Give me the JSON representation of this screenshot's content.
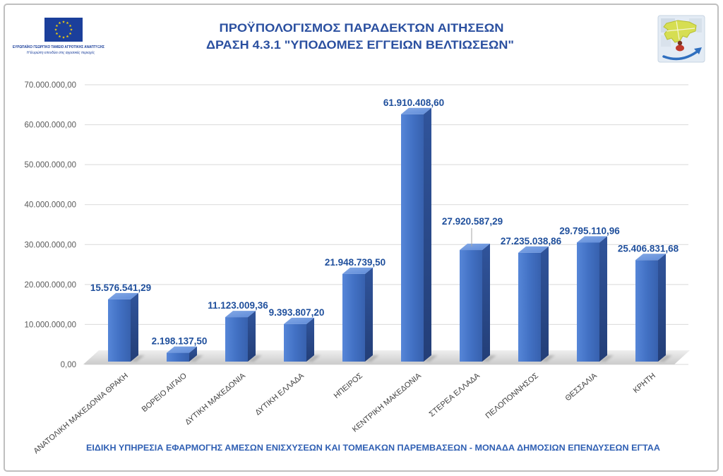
{
  "chart_data": {
    "type": "bar",
    "three_d": true,
    "title": "ΠΡΟΫΠΟΛΟΓΙΣΜΟΣ ΠΑΡΑΔΕΚΤΩΝ ΑΙΤΗΣΕΩΝ",
    "subtitle": "ΔΡΑΣΗ 4.3.1 \"ΥΠΟΔΟΜΕΣ ΕΓΓΕΙΩΝ ΒΕΛΤΙΩΣΕΩΝ\"",
    "categories": [
      "ΑΝΑΤΟΛΙΚΗ ΜΑΚΕΔΟΝΙΑ ΘΡΑΚΗ",
      "ΒΟΡΕΙΟ ΑΙΓΑΙΟ",
      "ΔΥΤΙΚΗ ΜΑΚΕΔΟΝΙΑ",
      "ΔΥΤΙΚΗ ΕΛΛΑΔΑ",
      "ΗΠΕΙΡΟΣ",
      "ΚΕΝΤΡΙΚΗ ΜΑΚΕΔΟΝΙΑ",
      "ΣΤΕΡΕΑ ΕΛΛΑΔΑ",
      "ΠΕΛΟΠΟΝΝΗΣΟΣ",
      "ΘΕΣΣΑΛΙΑ",
      "ΚΡΗΤΗ"
    ],
    "values": [
      15576541.29,
      2198137.5,
      11123009.36,
      9393807.2,
      21948739.5,
      61910408.6,
      27920587.29,
      27235038.86,
      29795110.96,
      25406831.68
    ],
    "data_labels": [
      "15.576.541,29",
      "2.198.137,50",
      "11.123.009,36",
      "9.393.807,20",
      "21.948.739,50",
      "61.910.408,60",
      "27.920.587,29",
      "27.235.038,86",
      "29.795.110,96",
      "25.406.831,68"
    ],
    "ylim": [
      0,
      70000000
    ],
    "y_ticks": [
      0,
      10000000,
      20000000,
      30000000,
      40000000,
      50000000,
      60000000,
      70000000
    ],
    "y_tick_labels": [
      "0,00",
      "10.000.000,00",
      "20.000.000,00",
      "30.000.000,00",
      "40.000.000,00",
      "50.000.000,00",
      "60.000.000,00",
      "70.000.000,00"
    ],
    "grid": true,
    "legend": "none"
  },
  "logo_left": {
    "icon": "eu-flag-icon",
    "line1": "ΕΥΡΩΠΑΪΚΟ ΓΕΩΡΓΙΚΟ ΤΑΜΕΙΟ ΑΓΡΟΤΙΚΗΣ ΑΝΑΠΤΥΞΗΣ",
    "line2": "Η Ευρώπη επενδύει στις αγροτικές περιοχές"
  },
  "logo_right": {
    "icon": "greece-puzzle-logo-icon"
  },
  "footer": "ΕΙΔΙΚΗ ΥΠΗΡΕΣΙΑ ΕΦΑΡΜΟΓΗΣ ΑΜΕΣΩΝ ΕΝΙΣΧΥΣΕΩΝ ΚΑΙ ΤΟΜΕΑΚΩΝ ΠΑΡΕΜΒΑΣΕΩΝ - ΜΟΝΑΔΑ ΔΗΜΟΣΙΩΝ ΕΠΕΝΔΥΣΕΩΝ ΕΓΤΑΑ",
  "colors": {
    "title": "#2b50a0",
    "data_label": "#1f4f9c",
    "footer": "#2f5fb3",
    "bar": "#4271c4",
    "eu_blue": "#1b3f9b",
    "eu_yellow": "#ffd700",
    "gridline": "#d9d9d9",
    "tick_label": "#595959"
  }
}
